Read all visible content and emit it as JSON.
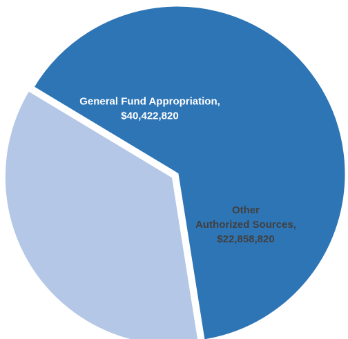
{
  "chart_data": {
    "type": "pie",
    "slices": [
      {
        "label_lines": [
          "General Fund Appropriation,",
          "$40,422,820"
        ],
        "value": 40422820,
        "color": "#2E75B6",
        "label_color": "#ffffff",
        "exploded": false
      },
      {
        "label_lines": [
          "Other",
          "Authorized Sources,",
          "$22,858,820"
        ],
        "value": 22858820,
        "color": "#B4C7E7",
        "label_color": "#404040",
        "exploded": true
      }
    ],
    "legend": "none"
  }
}
